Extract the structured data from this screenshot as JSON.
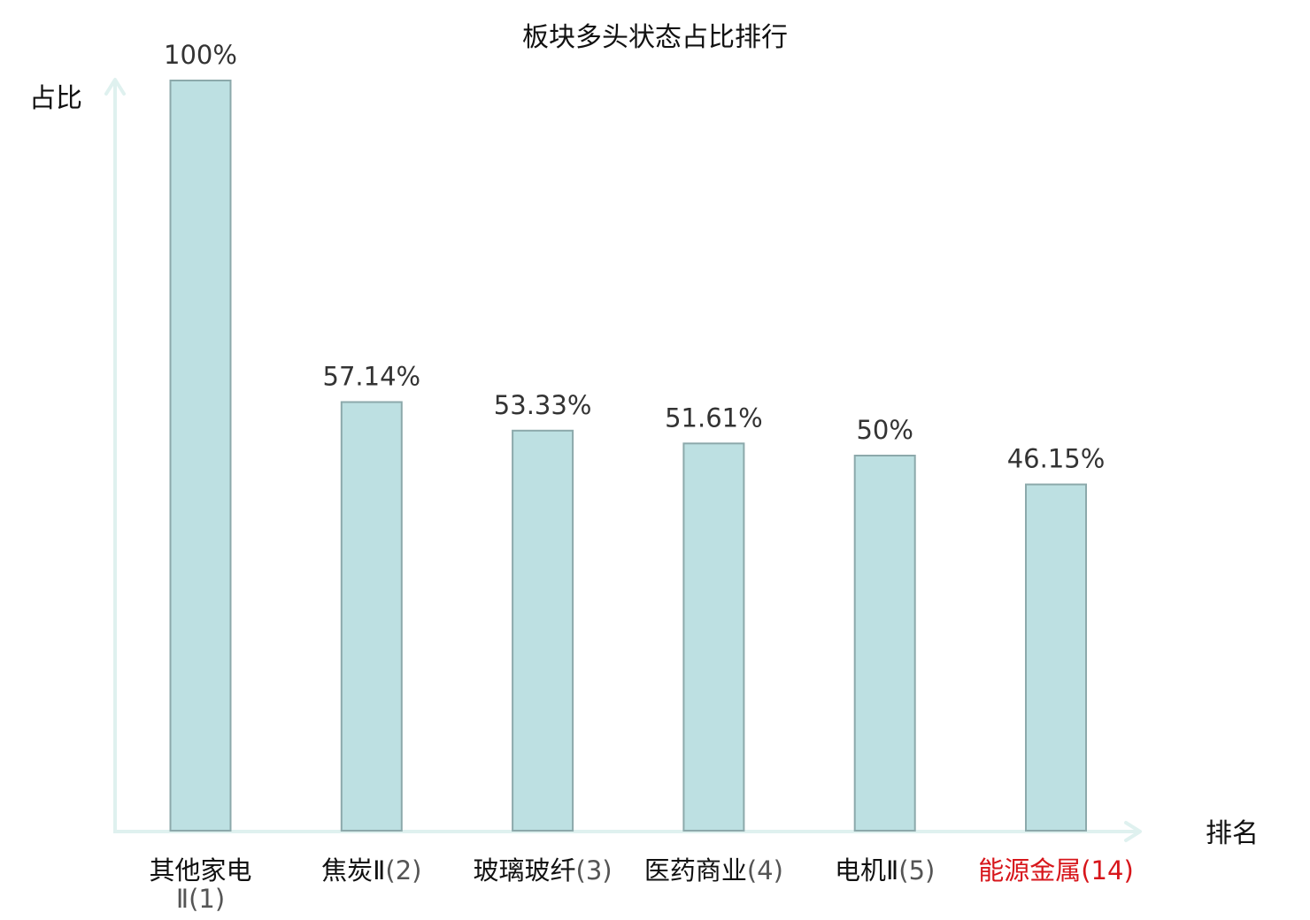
{
  "chart_data": {
    "type": "bar",
    "title": "板块多头状态占比排行",
    "ylabel": "占比",
    "xlabel": "排名",
    "ylim": [
      0,
      100
    ],
    "grid": false,
    "categories": [
      {
        "name": "其他家电Ⅱ",
        "rank": "(1)",
        "highlight": false
      },
      {
        "name": "焦炭Ⅱ",
        "rank": "(2)",
        "highlight": false
      },
      {
        "name": "玻璃玻纤",
        "rank": "(3)",
        "highlight": false
      },
      {
        "name": "医药商业",
        "rank": "(4)",
        "highlight": false
      },
      {
        "name": "电机Ⅱ",
        "rank": "(5)",
        "highlight": false
      },
      {
        "name": "能源金属",
        "rank": "(14)",
        "highlight": true
      }
    ],
    "values": [
      100,
      57.14,
      53.33,
      51.61,
      50,
      46.15
    ],
    "value_labels": [
      "100%",
      "57.14%",
      "53.33%",
      "51.61%",
      "50%",
      "46.15%"
    ],
    "colors": {
      "bar_fill": "#bde0e2",
      "bar_stroke": "#8ca9ab",
      "axis": "#dff1ef",
      "highlight_text": "#d7161b"
    }
  }
}
